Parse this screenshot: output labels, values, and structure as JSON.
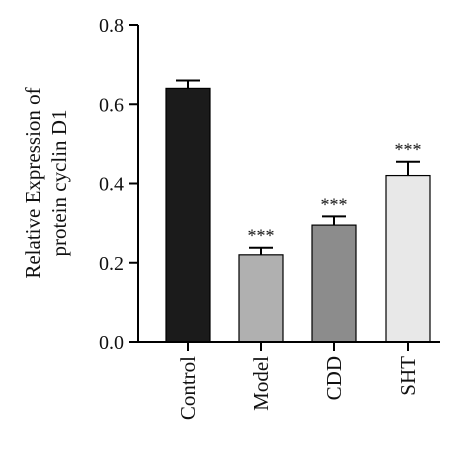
{
  "chart_data": {
    "type": "bar",
    "categories": [
      "Control",
      "Model",
      "CDD",
      "SHT"
    ],
    "values": [
      0.64,
      0.22,
      0.295,
      0.42
    ],
    "errors": [
      0.02,
      0.018,
      0.022,
      0.035
    ],
    "significance": [
      "",
      "***",
      "***",
      "***"
    ],
    "colors": [
      "#1b1b1b",
      "#b0b0b0",
      "#8c8c8c",
      "#e8e8e8"
    ],
    "xlabel": "",
    "ylabel_lines": [
      "Relative Expression of",
      "protein cyclin D1"
    ],
    "ylim": [
      0,
      0.8
    ],
    "yticks": [
      0.0,
      0.2,
      0.4,
      0.6,
      0.8
    ],
    "ytick_labels": [
      "0.0",
      "0.2",
      "0.4",
      "0.6",
      "0.8"
    ],
    "grid": false,
    "legend": "none"
  }
}
